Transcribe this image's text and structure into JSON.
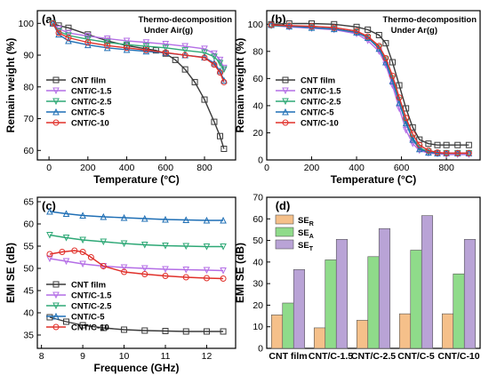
{
  "chart_data": [
    {
      "panel": "(a)",
      "type": "line",
      "annotation": [
        "Thermo-decomposition",
        "Under Air(g)"
      ],
      "xlabel": "Temperature (°C)",
      "ylabel": "Remain weight (%)",
      "xlim": [
        -60,
        960
      ],
      "ylim": [
        57,
        104
      ],
      "xticks": [
        0,
        200,
        400,
        600,
        800
      ],
      "yticks": [
        60,
        70,
        80,
        90,
        100
      ],
      "legend_position": "bottom-left",
      "series": [
        {
          "name": "CNT film",
          "color": "#3a3a3a",
          "marker": "square",
          "x": [
            20,
            50,
            100,
            200,
            300,
            400,
            500,
            550,
            600,
            650,
            700,
            750,
            800,
            850,
            880,
            900
          ],
          "y": [
            100,
            99.3,
            98.6,
            96.5,
            94.5,
            93,
            92,
            91.5,
            90.5,
            88.5,
            85.5,
            81.5,
            76,
            69,
            64.5,
            60.5
          ]
        },
        {
          "name": "CNT/C-1.5",
          "color": "#b46ee6",
          "marker": "triangle-down",
          "x": [
            20,
            50,
            100,
            200,
            300,
            400,
            500,
            600,
            700,
            800,
            850,
            880,
            900
          ],
          "y": [
            100,
            98.3,
            97,
            96,
            95.2,
            94.5,
            94,
            93.5,
            92.8,
            92,
            90.5,
            88.5,
            86
          ]
        },
        {
          "name": "CNT/C-2.5",
          "color": "#2ea876",
          "marker": "triangle-down",
          "x": [
            20,
            50,
            100,
            200,
            300,
            400,
            500,
            600,
            700,
            800,
            850,
            880,
            900
          ],
          "y": [
            100,
            97.5,
            96.2,
            95,
            94,
            93.3,
            92.8,
            92.3,
            91.5,
            90.8,
            89.5,
            87.5,
            85.5
          ]
        },
        {
          "name": "CNT/C-5",
          "color": "#1f6fb5",
          "marker": "triangle-up",
          "x": [
            20,
            50,
            100,
            200,
            300,
            400,
            500,
            600,
            700,
            800,
            850,
            880,
            900
          ],
          "y": [
            100,
            96.5,
            94.5,
            93.2,
            92.3,
            91.7,
            91.2,
            90.7,
            90,
            89.3,
            87.5,
            85,
            82
          ]
        },
        {
          "name": "CNT/C-10",
          "color": "#e0302a",
          "marker": "circle",
          "x": [
            20,
            50,
            100,
            200,
            300,
            400,
            500,
            600,
            700,
            800,
            850,
            880,
            900
          ],
          "y": [
            100,
            97,
            95.5,
            94,
            93,
            92.3,
            91.6,
            90.8,
            90,
            89.2,
            87,
            84.5,
            81.5
          ]
        }
      ]
    },
    {
      "panel": "(b)",
      "type": "line",
      "annotation": [
        "Thermo-decomposition",
        "Under Ar(g)"
      ],
      "xlabel": "Temperature (°C)",
      "ylabel": "Remain weight (%)",
      "xlim": [
        0,
        950
      ],
      "ylim": [
        0,
        110
      ],
      "xticks": [
        0,
        200,
        400,
        600,
        800
      ],
      "yticks": [
        0,
        20,
        40,
        60,
        80,
        100
      ],
      "legend_position": "bottom-left",
      "series": [
        {
          "name": "CNT film",
          "color": "#3a3a3a",
          "marker": "square",
          "x": [
            20,
            100,
            200,
            300,
            400,
            450,
            500,
            530,
            560,
            590,
            620,
            650,
            680,
            720,
            760,
            800,
            850,
            900
          ],
          "y": [
            100,
            100.5,
            100.5,
            100,
            98,
            96,
            92,
            86,
            72,
            55,
            38,
            24,
            15,
            12,
            11,
            11,
            11,
            11
          ]
        },
        {
          "name": "CNT/C-1.5",
          "color": "#b46ee6",
          "marker": "triangle-down",
          "x": [
            20,
            100,
            200,
            300,
            400,
            450,
            500,
            530,
            560,
            590,
            620,
            650,
            680,
            720,
            760,
            800,
            850,
            900
          ],
          "y": [
            99,
            98,
            97,
            96,
            93,
            88,
            80,
            70,
            55,
            38,
            22,
            12,
            7,
            5,
            4.5,
            4,
            4,
            4
          ]
        },
        {
          "name": "CNT/C-2.5",
          "color": "#2ea876",
          "marker": "triangle-down",
          "x": [
            20,
            100,
            200,
            300,
            400,
            450,
            500,
            530,
            560,
            590,
            620,
            650,
            680,
            720,
            760,
            800,
            850,
            900
          ],
          "y": [
            99,
            98.5,
            97.5,
            96.5,
            94,
            90,
            83,
            74,
            60,
            44,
            28,
            16,
            9,
            6,
            5,
            5,
            5,
            5
          ]
        },
        {
          "name": "CNT/C-5",
          "color": "#1f6fb5",
          "marker": "triangle-up",
          "x": [
            20,
            100,
            200,
            300,
            400,
            450,
            500,
            530,
            560,
            590,
            620,
            650,
            680,
            720,
            760,
            800,
            850,
            900
          ],
          "y": [
            99.5,
            98.5,
            97.5,
            96.5,
            94,
            90,
            82,
            72,
            58,
            42,
            27,
            15,
            8,
            5.5,
            5,
            5,
            5,
            5
          ]
        },
        {
          "name": "CNT/C-10",
          "color": "#e0302a",
          "marker": "circle",
          "x": [
            20,
            100,
            200,
            300,
            400,
            450,
            500,
            530,
            560,
            590,
            620,
            650,
            680,
            720,
            760,
            800,
            850,
            900
          ],
          "y": [
            99.5,
            99,
            98.5,
            97.5,
            95,
            91,
            84,
            75,
            62,
            46,
            31,
            19,
            11,
            7,
            5.5,
            5,
            5,
            5
          ]
        }
      ]
    },
    {
      "panel": "(c)",
      "type": "line",
      "xlabel": "Frequence (GHz)",
      "ylabel": "EMI SE (dB)",
      "xlim": [
        7.9,
        12.7
      ],
      "ylim": [
        32,
        66
      ],
      "xticks": [
        8,
        9,
        10,
        11,
        12
      ],
      "yticks": [
        35,
        40,
        45,
        50,
        55,
        60,
        65
      ],
      "legend_position": "middle-left",
      "series": [
        {
          "name": "CNT film",
          "color": "#3a3a3a",
          "marker": "square",
          "x": [
            8.2,
            8.6,
            9.0,
            9.5,
            10.0,
            10.5,
            11.0,
            11.5,
            12.0,
            12.4
          ],
          "y": [
            39,
            38,
            37.2,
            36.6,
            36.2,
            36,
            35.9,
            35.8,
            35.8,
            35.8
          ]
        },
        {
          "name": "CNT/C-1.5",
          "color": "#b46ee6",
          "marker": "triangle-down",
          "x": [
            8.2,
            8.6,
            9.0,
            9.5,
            10.0,
            10.5,
            11.0,
            11.5,
            12.0,
            12.4
          ],
          "y": [
            52.2,
            51.6,
            51,
            50.5,
            50.2,
            50,
            49.8,
            49.7,
            49.6,
            49.5
          ]
        },
        {
          "name": "CNT/C-2.5",
          "color": "#2ea876",
          "marker": "triangle-down",
          "x": [
            8.2,
            8.6,
            9.0,
            9.5,
            10.0,
            10.5,
            11.0,
            11.5,
            12.0,
            12.4
          ],
          "y": [
            57.5,
            56.9,
            56.4,
            56,
            55.6,
            55.3,
            55.1,
            55,
            54.9,
            54.9
          ]
        },
        {
          "name": "CNT/C-5",
          "color": "#1f6fb5",
          "marker": "triangle-up",
          "x": [
            8.2,
            8.6,
            9.0,
            9.5,
            10.0,
            10.5,
            11.0,
            11.5,
            12.0,
            12.4
          ],
          "y": [
            62.8,
            62.3,
            61.9,
            61.6,
            61.4,
            61.2,
            61,
            60.9,
            60.8,
            60.8
          ]
        },
        {
          "name": "CNT/C-10",
          "color": "#e0302a",
          "marker": "circle",
          "x": [
            8.2,
            8.5,
            8.8,
            9.0,
            9.2,
            9.5,
            10.0,
            10.5,
            11.0,
            11.5,
            12.0,
            12.4
          ],
          "y": [
            53.2,
            53.7,
            54,
            53.7,
            52.5,
            50.5,
            49.2,
            48.7,
            48.3,
            48,
            47.8,
            47.7
          ]
        }
      ]
    },
    {
      "panel": "(d)",
      "type": "bar",
      "ylabel": "EMI SE (dB)",
      "ylim": [
        0,
        70
      ],
      "yticks": [
        0,
        10,
        20,
        30,
        40,
        50,
        60,
        70
      ],
      "legend_position": "top-left",
      "categories": [
        "CNT film",
        "CNT/C-1.5",
        "CNT/C-2.5",
        "CNT/C-5",
        "CNT/C-10"
      ],
      "series": [
        {
          "name": "SE",
          "sub": "R",
          "color": "#f5c08a",
          "values": [
            15.5,
            9.5,
            13,
            16,
            16
          ]
        },
        {
          "name": "SE",
          "sub": "A",
          "color": "#8fdb8a",
          "values": [
            21,
            41,
            42.5,
            45.5,
            34.5
          ]
        },
        {
          "name": "SE",
          "sub": "T",
          "color": "#b9a3d6",
          "values": [
            36.5,
            50.5,
            55.5,
            61.5,
            50.5
          ]
        }
      ]
    }
  ]
}
